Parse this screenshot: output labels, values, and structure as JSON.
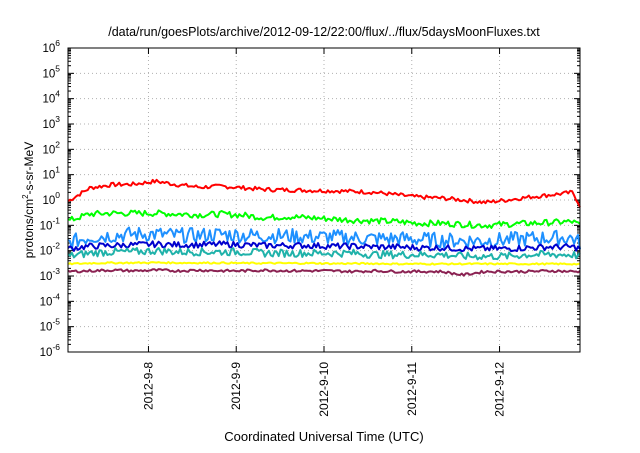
{
  "chart_data": {
    "type": "line",
    "title": "/data/run/goesPlots/archive/2012-09-12/22:00/flux/../flux/5daysMoonFluxes.txt",
    "xlabel": "Coordinated Universal Time (UTC)",
    "ylabel": {
      "base": "protons/cm",
      "sup": "2",
      "rest": "-s-sr-MeV"
    },
    "yscale": "log",
    "ylim": [
      1e-06,
      1000000.0
    ],
    "y_ticks": [
      {
        "mant": "10",
        "exp": "-6",
        "value": 1e-06
      },
      {
        "mant": "10",
        "exp": "-5",
        "value": 1e-05
      },
      {
        "mant": "10",
        "exp": "-4",
        "value": 0.0001
      },
      {
        "mant": "10",
        "exp": "-3",
        "value": 0.001
      },
      {
        "mant": "10",
        "exp": "-2",
        "value": 0.01
      },
      {
        "mant": "10",
        "exp": "-1",
        "value": 0.1
      },
      {
        "mant": "10",
        "exp": "0",
        "value": 1.0
      },
      {
        "mant": "10",
        "exp": "1",
        "value": 10.0
      },
      {
        "mant": "10",
        "exp": "2",
        "value": 100.0
      },
      {
        "mant": "10",
        "exp": "3",
        "value": 1000.0
      },
      {
        "mant": "10",
        "exp": "4",
        "value": 10000.0
      },
      {
        "mant": "10",
        "exp": "5",
        "value": 100000.0
      },
      {
        "mant": "10",
        "exp": "6",
        "value": 1000000.0
      }
    ],
    "xlim": [
      "2012-09-07 02:00",
      "2012-09-12 22:00"
    ],
    "x_ticks": [
      "2012-9-8",
      "2012-9-9",
      "2012-9-10",
      "2012-9-11",
      "2012-9-12"
    ],
    "x_tick_dates": [
      "2012-09-08 00:00",
      "2012-09-09 00:00",
      "2012-09-10 00:00",
      "2012-09-11 00:00",
      "2012-09-12 00:00"
    ],
    "grid": true,
    "x": [
      "2012-09-07 02:00",
      "2012-09-07 08:00",
      "2012-09-07 14:00",
      "2012-09-07 20:00",
      "2012-09-08 02:00",
      "2012-09-08 08:00",
      "2012-09-08 14:00",
      "2012-09-08 20:00",
      "2012-09-09 02:00",
      "2012-09-09 08:00",
      "2012-09-09 14:00",
      "2012-09-09 20:00",
      "2012-09-10 02:00",
      "2012-09-10 08:00",
      "2012-09-10 14:00",
      "2012-09-10 20:00",
      "2012-09-11 02:00",
      "2012-09-11 08:00",
      "2012-09-11 14:00",
      "2012-09-11 20:00",
      "2012-09-12 02:00",
      "2012-09-12 08:00",
      "2012-09-12 14:00",
      "2012-09-12 20:00",
      "2012-09-12 22:00"
    ],
    "series": [
      {
        "color": "#ff0000",
        "values": [
          0.9,
          3.0,
          4.0,
          4.2,
          5.5,
          4.0,
          3.2,
          3.5,
          3.0,
          2.6,
          2.5,
          2.4,
          2.3,
          2.2,
          2.0,
          1.6,
          1.3,
          1.2,
          1.0,
          0.8,
          1.0,
          1.3,
          1.6,
          2.0,
          0.6
        ]
      },
      {
        "color": "#00ff00",
        "values": [
          0.15,
          0.28,
          0.3,
          0.3,
          0.3,
          0.28,
          0.26,
          0.28,
          0.25,
          0.2,
          0.22,
          0.2,
          0.18,
          0.16,
          0.15,
          0.14,
          0.12,
          0.12,
          0.11,
          0.1,
          0.11,
          0.12,
          0.13,
          0.14,
          0.1
        ]
      },
      {
        "color": "#1e90ff",
        "values": [
          0.02,
          0.035,
          0.04,
          0.045,
          0.045,
          0.04,
          0.04,
          0.045,
          0.04,
          0.04,
          0.038,
          0.035,
          0.035,
          0.032,
          0.03,
          0.03,
          0.028,
          0.026,
          0.025,
          0.025,
          0.027,
          0.03,
          0.032,
          0.032,
          0.02
        ]
      },
      {
        "color": "#0000cd",
        "values": [
          0.012,
          0.015,
          0.016,
          0.017,
          0.018,
          0.017,
          0.017,
          0.018,
          0.017,
          0.016,
          0.016,
          0.016,
          0.015,
          0.015,
          0.014,
          0.014,
          0.013,
          0.013,
          0.012,
          0.012,
          0.012,
          0.013,
          0.014,
          0.014,
          0.012
        ]
      },
      {
        "color": "#20b2aa",
        "values": [
          0.006,
          0.008,
          0.009,
          0.009,
          0.01,
          0.009,
          0.009,
          0.009,
          0.009,
          0.008,
          0.008,
          0.008,
          0.008,
          0.008,
          0.007,
          0.007,
          0.007,
          0.007,
          0.006,
          0.006,
          0.006,
          0.007,
          0.007,
          0.007,
          0.006
        ]
      },
      {
        "color": "#ffff00",
        "values": [
          0.003,
          0.0032,
          0.0033,
          0.0033,
          0.0034,
          0.0033,
          0.0033,
          0.0033,
          0.0032,
          0.0032,
          0.0032,
          0.0032,
          0.0031,
          0.0031,
          0.0031,
          0.003,
          0.003,
          0.003,
          0.003,
          0.003,
          0.003,
          0.003,
          0.003,
          0.003,
          0.0029
        ]
      },
      {
        "color": "#8b2252",
        "values": [
          0.0015,
          0.0016,
          0.0017,
          0.0016,
          0.0017,
          0.0016,
          0.0017,
          0.0016,
          0.0016,
          0.0017,
          0.0016,
          0.0016,
          0.0016,
          0.0015,
          0.0016,
          0.0015,
          0.0015,
          0.0015,
          0.0011,
          0.0015,
          0.0015,
          0.0015,
          0.0016,
          0.0015,
          0.0015
        ]
      }
    ]
  }
}
